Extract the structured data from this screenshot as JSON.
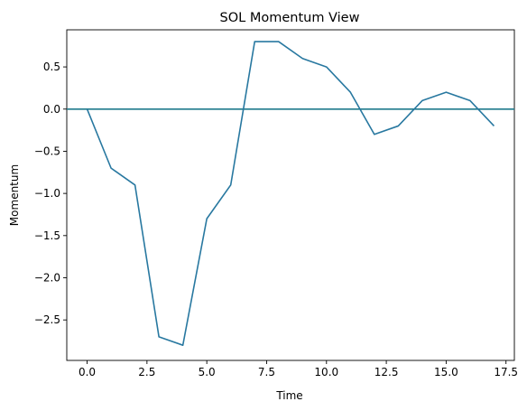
{
  "chart_data": {
    "type": "line",
    "title": "SOL Momentum View",
    "xlabel": "Time",
    "ylabel": "Momentum",
    "xlim": [
      -0.85,
      17.85
    ],
    "ylim": [
      -2.98,
      0.94
    ],
    "x_ticks": [
      0.0,
      2.5,
      5.0,
      7.5,
      10.0,
      12.5,
      15.0,
      17.5
    ],
    "x_tick_labels": [
      "0.0",
      "2.5",
      "5.0",
      "7.5",
      "10.0",
      "12.5",
      "15.0",
      "17.5"
    ],
    "y_ticks": [
      0.5,
      0.0,
      -0.5,
      -1.0,
      -1.5,
      -2.0,
      -2.5
    ],
    "y_tick_labels": [
      "0.5",
      "0.0",
      "−0.5",
      "−1.0",
      "−1.5",
      "−2.0",
      "−2.5"
    ],
    "grid": false,
    "reference_line": {
      "y": 0,
      "color": "#1f7a8c"
    },
    "series": [
      {
        "color": "#2878a0",
        "x": [
          0,
          1,
          2,
          3,
          4,
          5,
          6,
          7,
          8,
          9,
          10,
          11,
          12,
          13,
          14,
          15,
          16,
          17
        ],
        "y": [
          0.0,
          -0.7,
          -0.9,
          -2.7,
          -2.8,
          -1.3,
          -0.9,
          0.8,
          0.8,
          0.6,
          0.5,
          0.2,
          -0.3,
          -0.2,
          0.1,
          0.2,
          0.1,
          -0.2
        ]
      }
    ]
  }
}
